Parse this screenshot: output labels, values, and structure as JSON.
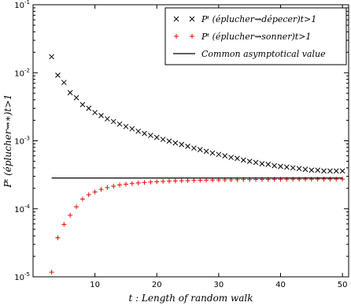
{
  "chart_data": {
    "type": "scatter",
    "xlabel": "t : Length of random walk",
    "ylabel": "Pᵗ (éplucher⇝∗)t>1",
    "xlim": [
      0,
      51
    ],
    "ylim": [
      1e-05,
      0.1
    ],
    "yscale": "log",
    "grid": false,
    "legend_position": "top-right",
    "x_ticks": [
      10,
      20,
      30,
      40,
      50
    ],
    "y_ticks": [
      {
        "value": 1e-05,
        "base": "10",
        "exp": "-5"
      },
      {
        "value": 0.0001,
        "base": "10",
        "exp": "-4"
      },
      {
        "value": 0.001,
        "base": "10",
        "exp": "-3"
      },
      {
        "value": 0.01,
        "base": "10",
        "exp": "-2"
      },
      {
        "value": 0.1,
        "base": "10",
        "exp": "-1"
      }
    ],
    "series": [
      {
        "name": "Pᵗ (éplucher⇝dépecer)t>1",
        "marker": "x",
        "color": "#000000",
        "x": [
          3,
          4,
          5,
          6,
          7,
          8,
          9,
          10,
          11,
          12,
          13,
          14,
          15,
          16,
          17,
          18,
          19,
          20,
          21,
          22,
          23,
          24,
          25,
          26,
          27,
          28,
          29,
          30,
          31,
          32,
          33,
          34,
          35,
          36,
          37,
          38,
          39,
          40,
          41,
          42,
          43,
          44,
          45,
          46,
          47,
          48,
          49,
          50
        ],
        "y": [
          0.0172,
          0.0092,
          0.0072,
          0.0051,
          0.0043,
          0.0034,
          0.003,
          0.0026,
          0.00235,
          0.0021,
          0.00192,
          0.00176,
          0.00162,
          0.0015,
          0.00138,
          0.00128,
          0.0012,
          0.00112,
          0.00105,
          0.00099,
          0.00093,
          0.00088,
          0.00083,
          0.00078,
          0.00074,
          0.0007,
          0.00066,
          0.00063,
          0.0006,
          0.00057,
          0.00055,
          0.00052,
          0.0005,
          0.00048,
          0.00046,
          0.00045,
          0.00043,
          0.00042,
          0.00041,
          0.0004,
          0.00039,
          0.00038,
          0.00037,
          0.00037,
          0.00036,
          0.00036,
          0.00036,
          0.00036
        ]
      },
      {
        "name": "Pᵗ (éplucher⇝sonner)t>1",
        "marker": "+",
        "color": "#ff0000",
        "x": [
          3,
          4,
          5,
          6,
          7,
          8,
          9,
          10,
          11,
          12,
          13,
          14,
          15,
          16,
          17,
          18,
          19,
          20,
          21,
          22,
          23,
          24,
          25,
          26,
          27,
          28,
          29,
          30,
          31,
          32,
          33,
          34,
          35,
          36,
          37,
          38,
          39,
          40,
          41,
          42,
          43,
          44,
          45,
          46,
          47,
          48,
          49,
          50
        ],
        "y": [
          1.17e-05,
          3.75e-05,
          5.89e-05,
          8.04e-05,
          0.000107,
          0.000139,
          0.000161,
          0.000177,
          0.000193,
          0.000205,
          0.000215,
          0.000224,
          0.00023,
          0.000235,
          0.00024,
          0.000244,
          0.000247,
          0.00025,
          0.000253,
          0.000255,
          0.000257,
          0.000259,
          0.00026,
          0.000262,
          0.000263,
          0.000264,
          0.000265,
          0.000266,
          0.000267,
          0.000267,
          0.000268,
          0.000269,
          0.000269,
          0.00027,
          0.00027,
          0.00027,
          0.000271,
          0.000271,
          0.000271,
          0.000272,
          0.000272,
          0.000272,
          0.000272,
          0.000273,
          0.000273,
          0.000273,
          0.000273,
          0.000273
        ]
      },
      {
        "name": "Common asymptotical value",
        "marker": "line",
        "color": "#000000",
        "x": [
          3,
          50
        ],
        "y": [
          0.000283,
          0.000283
        ]
      }
    ]
  }
}
